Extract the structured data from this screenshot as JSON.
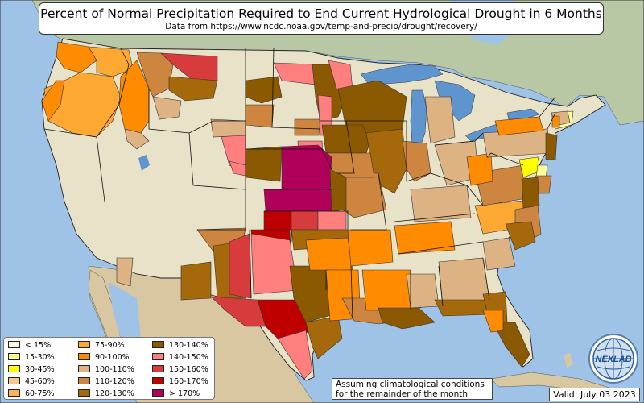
{
  "header": {
    "title": "Percent of Normal Precipitation Required to End Current Hydrological Drought in 6 Months",
    "subtitle": "Data from https://www.ncdc.noaa.gov/temp-and-precip/drought/recovery/"
  },
  "legend": {
    "items": [
      {
        "label": "< 15%",
        "color": "#ffffe0"
      },
      {
        "label": "15-30%",
        "color": "#ffff99"
      },
      {
        "label": "30-45%",
        "color": "#ffff00"
      },
      {
        "label": "45-60%",
        "color": "#f5c98a"
      },
      {
        "label": "60-75%",
        "color": "#fbb45a"
      },
      {
        "label": "75-90%",
        "color": "#fca832"
      },
      {
        "label": "90-100%",
        "color": "#ff8c00"
      },
      {
        "label": "100-110%",
        "color": "#ddb383"
      },
      {
        "label": "110-120%",
        "color": "#cd853f"
      },
      {
        "label": "120-130%",
        "color": "#a5690c"
      },
      {
        "label": "130-140%",
        "color": "#8b5a00"
      },
      {
        "label": "140-150%",
        "color": "#ff7f7f"
      },
      {
        "label": "150-160%",
        "color": "#d83b3b"
      },
      {
        "label": "160-170%",
        "color": "#bf0000"
      },
      {
        "label": "> 170%",
        "color": "#b0005a"
      }
    ]
  },
  "note": {
    "line1": "Assuming climatological conditions",
    "line2": "for the remainder of the month"
  },
  "valid_label": "Valid: July 03 2023",
  "logo": {
    "text": "NEXLAB",
    "icon": "globe-icon"
  },
  "colors": {
    "ocean": "#9ec3e6",
    "land": "#e8e2c8",
    "canada": "#b9c8a4",
    "mexico": "#d8c7a0",
    "lakes": "#5f95cf",
    "border": "#222222"
  }
}
